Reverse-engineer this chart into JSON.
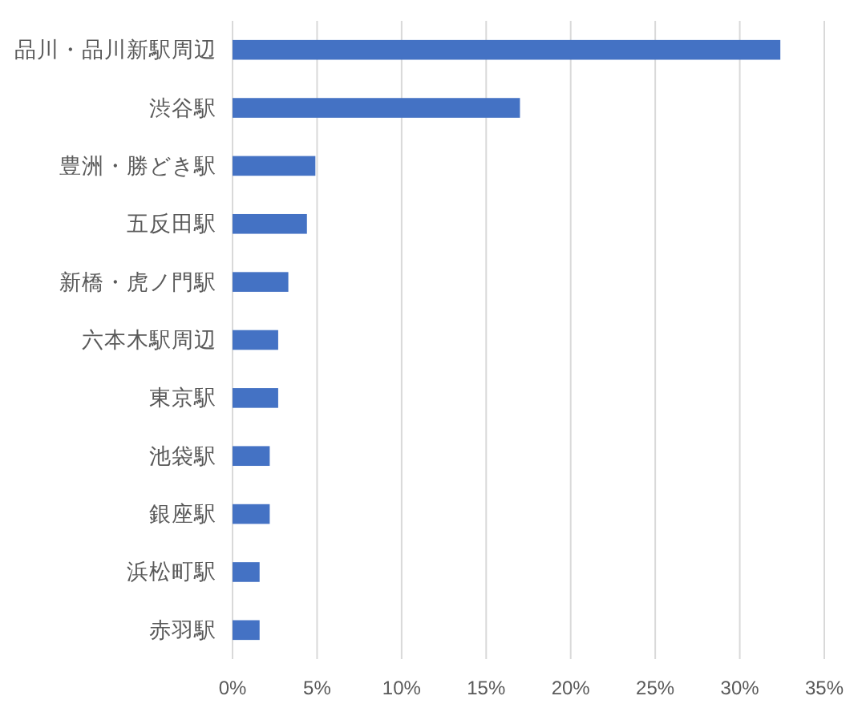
{
  "chart_data": {
    "type": "bar",
    "orientation": "horizontal",
    "categories": [
      "品川・品川新駅周辺",
      "渋谷駅",
      "豊洲・勝どき駅",
      "五反田駅",
      "新橋・虎ノ門駅",
      "六本木駅周辺",
      "東京駅",
      "池袋駅",
      "銀座駅",
      "浜松町駅",
      "赤羽駅"
    ],
    "values": [
      32.4,
      17.0,
      4.9,
      4.4,
      3.3,
      2.7,
      2.7,
      2.2,
      2.2,
      1.6,
      1.6
    ],
    "color": "#4472c4",
    "xlim": [
      0,
      35
    ],
    "xticks": [
      {
        "value": 0,
        "label": "0%"
      },
      {
        "value": 5,
        "label": "5%"
      },
      {
        "value": 10,
        "label": "10%"
      },
      {
        "value": 15,
        "label": "15%"
      },
      {
        "value": 20,
        "label": "20%"
      },
      {
        "value": 25,
        "label": "25%"
      },
      {
        "value": 30,
        "label": "30%"
      },
      {
        "value": 35,
        "label": "35%"
      }
    ],
    "grid": "x"
  }
}
